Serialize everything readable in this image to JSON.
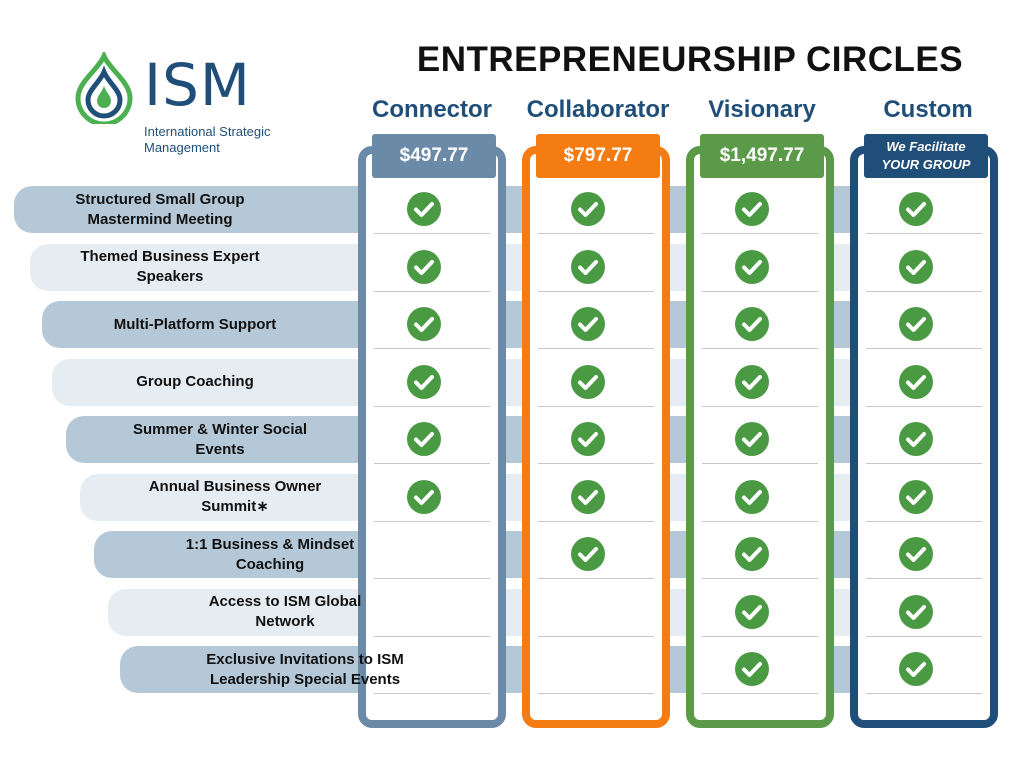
{
  "logo": {
    "wordmark": "ISM",
    "tagline_line1": "International Strategic",
    "tagline_line2": "Management",
    "icon": "water-drop-ripple-icon",
    "colors": {
      "green": "#4caf50",
      "blue": "#1f4e79"
    }
  },
  "title": "ENTREPRENEURSHIP CIRCLES",
  "features": [
    {
      "label": "Structured Small Group\nMastermind Meeting"
    },
    {
      "label": "Themed Business Expert\nSpeakers"
    },
    {
      "label": "Multi-Platform Support"
    },
    {
      "label": "Group Coaching"
    },
    {
      "label": "Summer & Winter Social\nEvents"
    },
    {
      "label": "Annual Business Owner\nSummit∗"
    },
    {
      "label": "1:1 Business & Mindset\nCoaching"
    },
    {
      "label": "Access to ISM Global\nNetwork"
    },
    {
      "label": "Exclusive Invitations to ISM\nLeadership Special Events"
    }
  ],
  "plans": [
    {
      "name": "Connector",
      "price": "$497.77",
      "color": "#6a8aa8",
      "included": [
        true,
        true,
        true,
        true,
        true,
        true,
        false,
        false,
        false
      ]
    },
    {
      "name": "Collaborator",
      "price": "$797.77",
      "color": "#f47c13",
      "included": [
        true,
        true,
        true,
        true,
        true,
        true,
        true,
        false,
        false
      ]
    },
    {
      "name": "Visionary",
      "price": "$1,497.77",
      "color": "#5a9a48",
      "included": [
        true,
        true,
        true,
        true,
        true,
        true,
        true,
        true,
        true
      ]
    },
    {
      "name": "Custom",
      "price_line1": "We Facilitate",
      "price_line2": "YOUR GROUP",
      "color": "#1f4e79",
      "included": [
        true,
        true,
        true,
        true,
        true,
        true,
        true,
        true,
        true
      ]
    }
  ],
  "check_icon": "checkmark-circle-icon",
  "check_color": "#4a9a44",
  "band_colors": {
    "dark": "#b5c8d8",
    "light": "#e6edf2"
  }
}
